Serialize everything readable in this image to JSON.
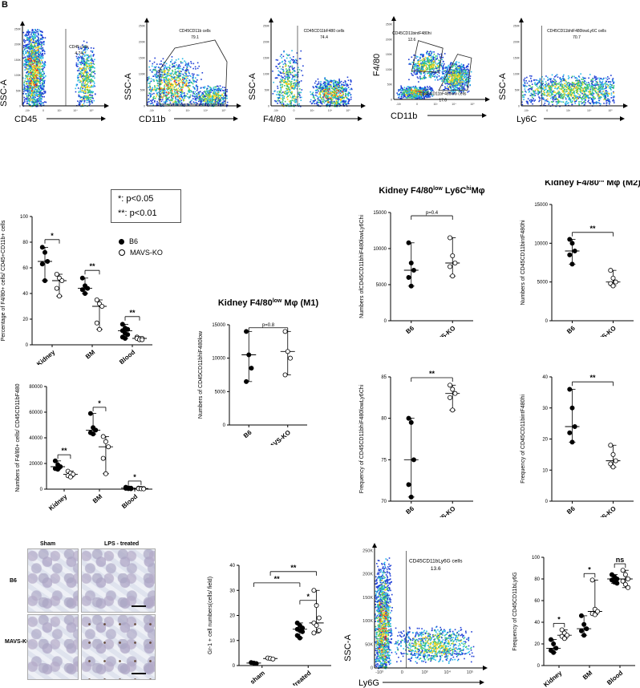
{
  "panel_label": "B",
  "flow_plots": [
    {
      "id": "f1",
      "ylabel": "SSC-A",
      "xlabel": "CD45",
      "gates": [
        {
          "name": "CD45 cells",
          "value": "4.74"
        }
      ]
    },
    {
      "id": "f2",
      "ylabel": "SSC-A",
      "xlabel": "CD11b",
      "gates": [
        {
          "name": "CD45CD11b cells",
          "value": "79.1"
        }
      ]
    },
    {
      "id": "f3",
      "ylabel": "SSC-A",
      "xlabel": "F4/80",
      "gates": [
        {
          "name": "CD45CD11bF480 cells",
          "value": "74.4"
        }
      ]
    },
    {
      "id": "f4",
      "ylabel": "F4/80",
      "xlabel": "CD11b",
      "gates": [
        {
          "name": "CD45CD11bintF480hi",
          "value": "12.6"
        },
        {
          "name": "CD45CD11bF480low cells",
          "value": "17.6"
        }
      ]
    },
    {
      "id": "f5",
      "ylabel": "SSC-A",
      "xlabel": "Ly6C",
      "gates": [
        {
          "name": "CD45CD11bhiF480lowLy6C cells",
          "value": "70.7"
        }
      ]
    },
    {
      "id": "f6",
      "ylabel": "SSC-A",
      "xlabel": "Ly6G",
      "gates": [
        {
          "name": "CD45CD11bLy6G cells",
          "value": "13.6"
        }
      ]
    }
  ],
  "flow_y_ticks": [
    "250K",
    "200K",
    "150K",
    "100K",
    "50K",
    "0"
  ],
  "flow_x_ticks": [
    "-10³",
    "0",
    "10³",
    "10⁴",
    "10⁵"
  ],
  "legend": {
    "sig1": "*:    p<0.05",
    "sig2": "**:  p<0.01",
    "b6": "B6",
    "ko": "MAVS-KO"
  },
  "histology": {
    "col_sham": "Sham",
    "col_lps": "LPS - treated",
    "row_b6": "B6",
    "row_ko": "MAVS-KO"
  },
  "chart_data": [
    {
      "id": "c1",
      "type": "scatter",
      "ylabel": "Percentage of F4/80+ cells/ CD45+CD11b+ cells",
      "categories": [
        "Kidney",
        "BM",
        "Blood"
      ],
      "ylim": [
        0,
        100
      ],
      "yticks": [
        0,
        20,
        40,
        60,
        80,
        100
      ],
      "series": [
        {
          "name": "B6",
          "values": [
            [
              76,
              72,
              65,
              63,
              50
            ],
            [
              52,
              46,
              44,
              43,
              40
            ],
            [
              16,
              13,
              12,
              11,
              9,
              8,
              6,
              5
            ]
          ]
        },
        {
          "name": "MAVS-KO",
          "values": [
            [
              55,
              52,
              50,
              44,
              38
            ],
            [
              35,
              32,
              30,
              17,
              12
            ],
            [
              6,
              5,
              5,
              5,
              4,
              4
            ]
          ]
        }
      ],
      "sig": [
        "*",
        "**",
        "**"
      ]
    },
    {
      "id": "c2",
      "type": "scatter",
      "ylabel": "Numbers of F4/80+ cells/ CD45CD11bF480",
      "categories": [
        "Kidney",
        "BM",
        "Blood"
      ],
      "ylim": [
        0,
        80000
      ],
      "yticks": [
        0,
        20000,
        40000,
        60000,
        80000
      ],
      "series": [
        {
          "name": "B6",
          "values": [
            [
              22000,
              19000,
              17500,
              16000,
              15500
            ],
            [
              59000,
              48000,
              46000,
              44000,
              43000
            ],
            [
              1500,
              1000,
              800,
              600,
              400,
              300
            ]
          ]
        },
        {
          "name": "MAVS-KO",
          "values": [
            [
              14000,
              12500,
              11500,
              10500,
              9500
            ],
            [
              41000,
              37000,
              33000,
              24000,
              12000
            ],
            [
              800,
              600,
              500,
              400,
              300,
              200
            ]
          ]
        }
      ],
      "sig": [
        "**",
        "*",
        "*"
      ]
    },
    {
      "id": "c3",
      "type": "scatter",
      "title": "Kidney F4/80",
      "title_sup": "low",
      "title_rest": " Mφ (M1)",
      "ylabel": "Numbers of CD45CD11bhiF480low",
      "categories": [
        "B6",
        "MAVS-KO"
      ],
      "ylim": [
        0,
        15000
      ],
      "yticks": [
        0,
        5000,
        10000,
        15000
      ],
      "series": [
        {
          "name": "B6",
          "values": [
            [
              14000,
              10500,
              8500,
              6500
            ]
          ]
        },
        {
          "name": "MAVS-KO",
          "values": [
            [
              14000,
              11000,
              10000,
              7500
            ]
          ]
        }
      ],
      "pval": "p=0.8"
    },
    {
      "id": "c4",
      "type": "scatter",
      "title": "Kidney F4/80",
      "title_sup": "low",
      "title_mid": " Ly6C",
      "title_sup2": "hi",
      "title_rest": "Mφ",
      "ylabel": "Numbers ofCD45CD11bhiF480lowLy6Chi",
      "categories": [
        "B6",
        "MAVS-KO"
      ],
      "ylim": [
        0,
        15000
      ],
      "yticks": [
        0,
        5000,
        10000,
        15000
      ],
      "series": [
        {
          "name": "B6",
          "values": [
            [
              10800,
              8000,
              7000,
              6000,
              4800
            ]
          ]
        },
        {
          "name": "MAVS-KO",
          "values": [
            [
              11500,
              9000,
              8000,
              7500,
              6200
            ]
          ]
        }
      ],
      "pval": "p=0.4"
    },
    {
      "id": "c5",
      "type": "scatter",
      "ylabel": "Frequency of CD45CD11bhiF480lowLy6Chi",
      "categories": [
        "B6",
        "MAVS-KO"
      ],
      "ylim": [
        70,
        85
      ],
      "yticks": [
        70,
        75,
        80,
        85
      ],
      "series": [
        {
          "name": "B6",
          "values": [
            [
              80,
              79.5,
              75,
              72,
              70.5
            ]
          ]
        },
        {
          "name": "MAVS-KO",
          "values": [
            [
              84,
              83.5,
              83,
              82.5,
              81
            ]
          ]
        }
      ],
      "sig": [
        "**"
      ]
    },
    {
      "id": "c6",
      "type": "scatter",
      "title": "Kidney F4/80",
      "title_sup": "hi",
      "title_rest": " Mφ (M2)",
      "ylabel": "Numbers of CD45CD11bintF480hi",
      "categories": [
        "B6",
        "MAVS-KO"
      ],
      "ylim": [
        0,
        15000
      ],
      "yticks": [
        0,
        5000,
        10000,
        15000
      ],
      "series": [
        {
          "name": "B6",
          "values": [
            [
              10500,
              10000,
              9000,
              8500,
              7300
            ]
          ]
        },
        {
          "name": "MAVS-KO",
          "values": [
            [
              6500,
              5500,
              5000,
              4800,
              4500
            ]
          ]
        }
      ],
      "sig": [
        "**"
      ]
    },
    {
      "id": "c7",
      "type": "scatter",
      "ylabel": "Frequency of CD45CD11bintF480hi",
      "categories": [
        "B6",
        "MAVS-KO"
      ],
      "ylim": [
        0,
        40
      ],
      "yticks": [
        0,
        10,
        20,
        30,
        40
      ],
      "series": [
        {
          "name": "B6",
          "values": [
            [
              36,
              30,
              24,
              22,
              19
            ]
          ]
        },
        {
          "name": "MAVS-KO",
          "values": [
            [
              18,
              15,
              13,
              12,
              11
            ]
          ]
        }
      ],
      "sig": [
        "**"
      ]
    },
    {
      "id": "c8",
      "type": "scatter",
      "ylabel": "Gr-1 + cell numbers(cells/ field)",
      "categories": [
        "sham",
        "LPS-treated"
      ],
      "ylim": [
        0,
        40
      ],
      "yticks": [
        0,
        10,
        20,
        30,
        40
      ],
      "series": [
        {
          "name": "B6",
          "values": [
            [
              1.2,
              1,
              0.8
            ],
            [
              17,
              16,
              15,
              14.5,
              14,
              13.5,
              12,
              11
            ]
          ]
        },
        {
          "name": "MAVS-KO",
          "values": [
            [
              3,
              2.8,
              2.6
            ],
            [
              30,
              24,
              19,
              17,
              16,
              14,
              13
            ]
          ]
        }
      ],
      "sig": [
        "**",
        "**",
        "*"
      ]
    },
    {
      "id": "c9",
      "type": "scatter",
      "ylabel": "Frequency of CD45CD11bLy6G",
      "categories": [
        "Kidney",
        "BM",
        "Blood"
      ],
      "ylim": [
        0,
        100
      ],
      "yticks": [
        0,
        20,
        40,
        60,
        80,
        100
      ],
      "series": [
        {
          "name": "B6",
          "values": [
            [
              24,
              20,
              16,
              14,
              12
            ],
            [
              46,
              38,
              34,
              32,
              28
            ],
            [
              84,
              82,
              80,
              79,
              77,
              76
            ]
          ]
        },
        {
          "name": "MAVS-KO",
          "values": [
            [
              33,
              30,
              28,
              27,
              25
            ],
            [
              79,
              52,
              50,
              48,
              47
            ],
            [
              88,
              84,
              80,
              78,
              75,
              72
            ]
          ]
        }
      ],
      "sig": [
        "*",
        "*",
        "ns"
      ]
    }
  ]
}
